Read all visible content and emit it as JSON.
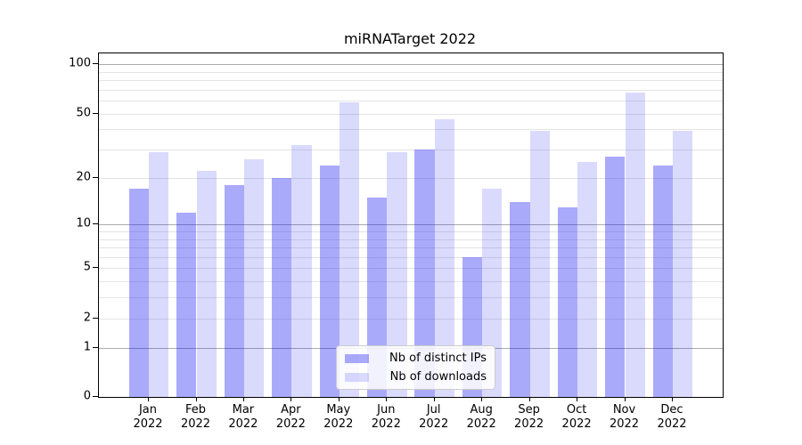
{
  "chart_data": {
    "type": "bar",
    "title": "miRNATarget 2022",
    "x_axis": {
      "months": [
        "Jan",
        "Feb",
        "Mar",
        "Apr",
        "May",
        "Jun",
        "Jul",
        "Aug",
        "Sep",
        "Oct",
        "Nov",
        "Dec"
      ],
      "year": "2022"
    },
    "y_axis": {
      "scale": "log1p",
      "tick_values": [
        100,
        50,
        20,
        10,
        5,
        2,
        1,
        0
      ],
      "tick_labels": [
        "100",
        "50",
        "20",
        "10",
        "5",
        "2",
        "1",
        "0"
      ],
      "major_gridline_values": [
        1,
        10,
        100
      ],
      "minor_gridline_values": [
        2,
        3,
        4,
        5,
        6,
        7,
        8,
        9,
        20,
        30,
        40,
        50,
        60,
        70,
        80,
        90
      ],
      "ylim": [
        0,
        115
      ],
      "grid": "on"
    },
    "series": [
      {
        "name": "Nb of distinct IPs",
        "color": "rgba(25,25,245,0.37)",
        "values": [
          17,
          12,
          18,
          20,
          24,
          15,
          30,
          6,
          14,
          13,
          27,
          24
        ]
      },
      {
        "name": "Nb of downloads",
        "color": "rgba(25,25,245,0.16)",
        "values": [
          29,
          22,
          26,
          32,
          59,
          29,
          46,
          17,
          39,
          25,
          67,
          39
        ]
      }
    ],
    "legend": {
      "position": "lower-center"
    }
  },
  "colors": {
    "background": "#ffffff",
    "spine": "#000000",
    "major_grid": "#ababab",
    "minor_grid": "#e4e4e4",
    "bar_distinct_ips": "rgba(25,25,245,0.37)",
    "bar_downloads": "rgba(25,25,245,0.16)",
    "legend_border": "#cccccc"
  }
}
